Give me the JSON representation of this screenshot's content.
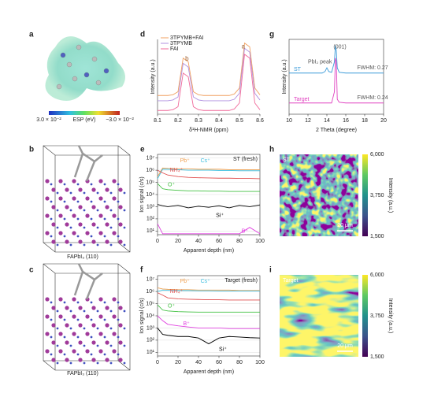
{
  "panels": {
    "a": {
      "label": "a",
      "colorbar_left": "3.0 × 10⁻²",
      "colorbar_title": "ESP (eV)",
      "colorbar_right": "−3.0 × 10⁻²"
    },
    "b": {
      "label": "b",
      "caption": "FAPbI₃ (110)"
    },
    "c": {
      "label": "c",
      "caption": "FAPbI₃ (110)"
    },
    "d": {
      "label": "d"
    },
    "e": {
      "label": "e"
    },
    "f": {
      "label": "f"
    },
    "g": {
      "label": "g"
    },
    "h": {
      "label": "h",
      "tag": "ST",
      "scale_bar": "20 μm",
      "colorbar_ticks": [
        "6,000",
        "3,750",
        "1,500"
      ],
      "colorbar_title": "Intensity (a.u.)"
    },
    "i": {
      "label": "i",
      "tag": "Target",
      "scale_bar": "20 μm",
      "colorbar_ticks": [
        "6,000",
        "3,750",
        "1,500"
      ],
      "colorbar_title": "Intensity (a.u.)"
    }
  },
  "chart_data": [
    {
      "type": "line",
      "xlabel": "δ¹H-NMR (ppm)",
      "ylabel": "Intensity (a.u.)",
      "legend": "upper left",
      "frame": "axes",
      "x": [
        8.1,
        8.125,
        8.15,
        8.175,
        8.2,
        8.225,
        8.25,
        8.275,
        8.3,
        8.325,
        8.35,
        8.375,
        8.4,
        8.425,
        8.45,
        8.475,
        8.5,
        8.525,
        8.55,
        8.575,
        8.6
      ],
      "xlim": [
        8.1,
        8.6
      ],
      "xticks": [
        8.1,
        8.2,
        8.3,
        8.4,
        8.5,
        8.6
      ],
      "ylim": [
        0,
        1
      ],
      "annotations": [
        "b",
        "a"
      ],
      "series": [
        {
          "name": "3TPYMB+FAI",
          "color": "#f0a060",
          "values": [
            0.25,
            0.25,
            0.25,
            0.26,
            0.3,
            0.75,
            0.7,
            0.3,
            0.26,
            0.25,
            0.25,
            0.25,
            0.25,
            0.25,
            0.25,
            0.27,
            0.35,
            0.95,
            0.9,
            0.35,
            0.26
          ]
        },
        {
          "name": "3TPYMB",
          "color": "#b090e0",
          "values": [
            0.18,
            0.18,
            0.18,
            0.19,
            0.23,
            0.68,
            0.63,
            0.23,
            0.19,
            0.18,
            0.18,
            0.18,
            0.18,
            0.18,
            0.18,
            0.2,
            0.28,
            0.88,
            0.83,
            0.28,
            0.19
          ]
        },
        {
          "name": "FAI",
          "color": "#f06a9a",
          "values": [
            0.05,
            0.05,
            0.05,
            0.06,
            0.1,
            0.55,
            0.5,
            0.1,
            0.06,
            0.05,
            0.05,
            0.05,
            0.05,
            0.05,
            0.05,
            0.07,
            0.15,
            0.8,
            0.75,
            0.15,
            0.06
          ]
        }
      ]
    },
    {
      "type": "line",
      "xlabel": "Apparent depth (nm)",
      "ylabel": "Ion signal (c/s)",
      "tag": "ST (fresh)",
      "log_y": true,
      "grid": true,
      "frame": "box",
      "x": [
        0,
        5,
        10,
        20,
        30,
        40,
        50,
        60,
        70,
        80,
        90,
        100
      ],
      "xlim": [
        0,
        100
      ],
      "xticks": [
        0,
        20,
        40,
        60,
        80,
        100
      ],
      "ylim": [
        5,
        20000000
      ],
      "yticks": [
        {
          "value": 10,
          "label": "10¹"
        },
        {
          "value": 100,
          "label": "10²"
        },
        {
          "value": 1000,
          "label": "10³"
        },
        {
          "value": 10000,
          "label": "10⁴"
        },
        {
          "value": 100000,
          "label": "10⁵"
        },
        {
          "value": 1000000,
          "label": "10⁶"
        },
        {
          "value": 10000000,
          "label": "10⁷"
        }
      ],
      "series": [
        {
          "name": "Pb⁺",
          "color": "#f0a050",
          "values": [
            300000,
            1500000,
            1400000,
            1300000,
            1300000,
            1200000,
            1200000,
            1200000,
            1100000,
            1100000,
            1100000,
            1100000
          ]
        },
        {
          "name": "Cs⁺",
          "color": "#40c0e0",
          "values": [
            200000,
            1200000,
            1200000,
            1100000,
            1000000,
            1000000,
            1000000,
            950000,
            950000,
            900000,
            900000,
            900000
          ]
        },
        {
          "name": "NH₄⁺",
          "color": "#e05050",
          "values": [
            1000000,
            600000,
            400000,
            300000,
            260000,
            240000,
            230000,
            220000,
            220000,
            210000,
            210000,
            200000
          ]
        },
        {
          "name": "O⁺",
          "color": "#40c040",
          "values": [
            80000,
            30000,
            25000,
            22000,
            20000,
            20000,
            19000,
            19000,
            18000,
            18000,
            18000,
            18000
          ]
        },
        {
          "name": "Si⁺",
          "color": "#000000",
          "values": [
            1500,
            1200,
            1000,
            1300,
            800,
            1100,
            900,
            1200,
            800,
            1300,
            1000,
            1400
          ]
        },
        {
          "name": "B⁺",
          "color": "#e040e0",
          "values": [
            40,
            6,
            6,
            6,
            6,
            6,
            6,
            6,
            6,
            6,
            20,
            6
          ]
        }
      ]
    },
    {
      "type": "line",
      "xlabel": "Apparent depth (nm)",
      "ylabel": "Ion signal (c/s)",
      "tag": "Target (fresh)",
      "log_y": true,
      "grid": true,
      "frame": "box",
      "x": [
        0,
        5,
        10,
        20,
        30,
        40,
        50,
        60,
        70,
        80,
        90,
        100
      ],
      "xlim": [
        0,
        100
      ],
      "xticks": [
        0,
        20,
        40,
        60,
        80,
        100
      ],
      "ylim": [
        5,
        20000000
      ],
      "yticks": [
        {
          "value": 10,
          "label": "10¹"
        },
        {
          "value": 100,
          "label": "10²"
        },
        {
          "value": 1000,
          "label": "10³"
        },
        {
          "value": 10000,
          "label": "10⁴"
        },
        {
          "value": 100000,
          "label": "10⁵"
        },
        {
          "value": 1000000,
          "label": "10⁶"
        },
        {
          "value": 10000000,
          "label": "10⁷"
        }
      ],
      "series": [
        {
          "name": "Pb⁺",
          "color": "#f0a050",
          "values": [
            2000000,
            1600000,
            1500000,
            1400000,
            1400000,
            1300000,
            1300000,
            1300000,
            1300000,
            1200000,
            1200000,
            1200000
          ]
        },
        {
          "name": "Cs⁺",
          "color": "#40c0e0",
          "values": [
            1000000,
            1300000,
            1250000,
            1200000,
            1200000,
            1150000,
            1150000,
            1100000,
            1100000,
            1100000,
            1100000,
            1100000
          ]
        },
        {
          "name": "NH₄⁺",
          "color": "#e05050",
          "values": [
            800000,
            500000,
            300000,
            250000,
            230000,
            220000,
            210000,
            210000,
            200000,
            200000,
            200000,
            200000
          ]
        },
        {
          "name": "O⁺",
          "color": "#40c040",
          "values": [
            80000,
            30000,
            25000,
            22000,
            21000,
            20000,
            20000,
            20000,
            20000,
            20000,
            20000,
            20000
          ]
        },
        {
          "name": "Si⁺",
          "color": "#000000",
          "values": [
            1000,
            300,
            250,
            200,
            200,
            150,
            50,
            150,
            200,
            180,
            160,
            150
          ]
        },
        {
          "name": "B⁺",
          "color": "#e040e0",
          "values": [
            10000,
            4000,
            2000,
            1500,
            1200,
            1000,
            1000,
            1000,
            900,
            900,
            900,
            900
          ]
        }
      ]
    },
    {
      "type": "line",
      "xlabel": "2 Theta (degree)",
      "ylabel": "Intensity (a.u.)",
      "frame": "box",
      "x": [
        10,
        11,
        12,
        13,
        13.5,
        13.8,
        14,
        14.2,
        14.5,
        14.8,
        14.9,
        15,
        15.1,
        15.3,
        16,
        17,
        18,
        19,
        20
      ],
      "xlim": [
        10,
        20
      ],
      "xticks": [
        10,
        12,
        14,
        16,
        18,
        20
      ],
      "ylim": [
        0,
        1
      ],
      "annotations": [
        "(001)",
        "PbI₂ peak",
        "FWHM: 0.27",
        "FWHM: 0.24"
      ],
      "series": [
        {
          "name": "ST",
          "color": "#3a9ad9",
          "values": [
            0.55,
            0.55,
            0.55,
            0.55,
            0.55,
            0.57,
            0.62,
            0.57,
            0.56,
            0.7,
            0.92,
            0.85,
            0.62,
            0.56,
            0.55,
            0.55,
            0.55,
            0.55,
            0.55
          ]
        },
        {
          "name": "Target",
          "color": "#e040c0",
          "values": [
            0.15,
            0.15,
            0.15,
            0.15,
            0.15,
            0.15,
            0.15,
            0.15,
            0.15,
            0.3,
            0.75,
            0.7,
            0.2,
            0.16,
            0.15,
            0.15,
            0.15,
            0.15,
            0.15
          ]
        }
      ]
    }
  ]
}
